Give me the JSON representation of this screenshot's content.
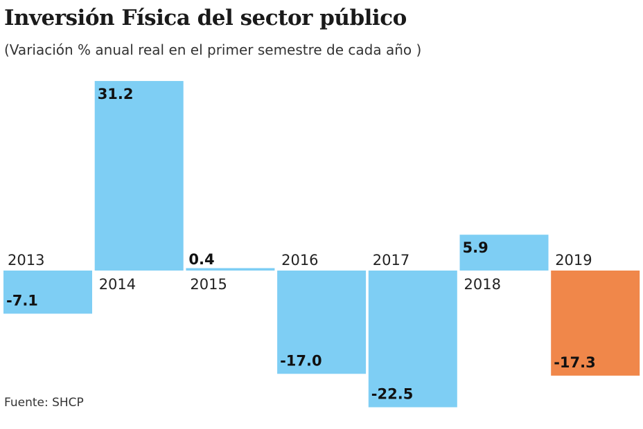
{
  "title": "Inversión Física del sector público",
  "subtitle": "(Variación % anual real en el primer semestre de cada año )",
  "source": "Fuente: SHCP",
  "chart_data": {
    "type": "bar",
    "categories": [
      "2013",
      "2014",
      "2015",
      "2016",
      "2017",
      "2018",
      "2019"
    ],
    "values": [
      -7.1,
      31.2,
      0.4,
      -17.0,
      -22.5,
      5.9,
      -17.3
    ],
    "labels": [
      "-7.1",
      "31.2",
      "0.4",
      "-17.0",
      "-22.5",
      "5.9",
      "-17.3"
    ],
    "colors": [
      "#7ecef4",
      "#7ecef4",
      "#7ecef4",
      "#7ecef4",
      "#7ecef4",
      "#7ecef4",
      "#f0874a"
    ],
    "title": "Inversión Física del sector público",
    "subtitle": "(Variación % anual real en el primer semestre de cada año )",
    "xlabel": "",
    "ylabel": "",
    "grid": false
  }
}
